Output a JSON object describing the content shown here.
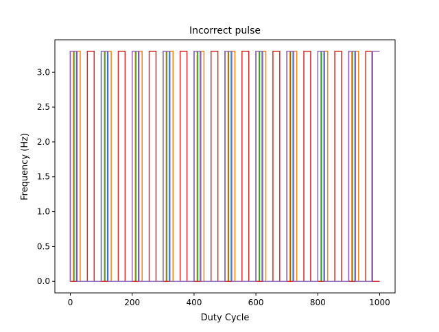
{
  "chart_data": {
    "type": "line",
    "title": "Incorrect pulse",
    "xlabel": "Duty Cycle",
    "ylabel": "Frequency (Hz)",
    "xlim": [
      -50,
      1050
    ],
    "ylim": [
      -0.165,
      3.465
    ],
    "xticks": [
      0,
      200,
      400,
      600,
      800,
      1000
    ],
    "xtick_labels": [
      "0",
      "200",
      "400",
      "600",
      "800",
      "1000"
    ],
    "yticks": [
      0.0,
      0.5,
      1.0,
      1.5,
      2.0,
      2.5,
      3.0
    ],
    "ytick_labels": [
      "0.0",
      "0.5",
      "1.0",
      "1.5",
      "2.0",
      "2.5",
      "3.0"
    ],
    "grid": false,
    "legend": "none",
    "low": 0.0,
    "high": 3.3,
    "x_start": 0,
    "x_end": 1000,
    "series": [
      {
        "color": "#1f77b4",
        "high_intervals": [
          [
            0,
            20
          ],
          [
            100,
            120
          ],
          [
            200,
            220
          ],
          [
            300,
            320
          ],
          [
            400,
            420
          ],
          [
            500,
            520
          ],
          [
            600,
            620
          ],
          [
            700,
            720
          ],
          [
            800,
            820
          ],
          [
            900,
            920
          ]
        ]
      },
      {
        "color": "#ff7f0e",
        "high_intervals": [
          [
            10,
            32
          ],
          [
            110,
            132
          ],
          [
            210,
            232
          ],
          [
            310,
            332
          ],
          [
            410,
            432
          ],
          [
            510,
            532
          ],
          [
            610,
            632
          ],
          [
            710,
            732
          ],
          [
            810,
            832
          ],
          [
            910,
            932
          ]
        ]
      },
      {
        "color": "#2ca02c",
        "high_intervals": [
          [
            0,
            12
          ],
          [
            100,
            112
          ],
          [
            200,
            212
          ],
          [
            300,
            312
          ],
          [
            400,
            412
          ],
          [
            500,
            512
          ],
          [
            600,
            612
          ],
          [
            700,
            712
          ],
          [
            800,
            812
          ],
          [
            900,
            912
          ]
        ]
      },
      {
        "color": "#d62728",
        "high_intervals": [
          [
            55,
            77
          ],
          [
            155,
            177
          ],
          [
            255,
            277
          ],
          [
            355,
            377
          ],
          [
            455,
            477
          ],
          [
            555,
            577
          ],
          [
            655,
            677
          ],
          [
            755,
            777
          ],
          [
            855,
            877
          ],
          [
            955,
            977
          ]
        ]
      },
      {
        "color": "#9467bd",
        "high_intervals": [
          [
            0,
            22
          ],
          [
            100,
            122
          ],
          [
            200,
            222
          ],
          [
            300,
            322
          ],
          [
            400,
            422
          ],
          [
            500,
            522
          ],
          [
            600,
            622
          ],
          [
            700,
            722
          ],
          [
            800,
            822
          ],
          [
            900,
            922
          ],
          [
            975,
            1000
          ]
        ]
      }
    ]
  }
}
